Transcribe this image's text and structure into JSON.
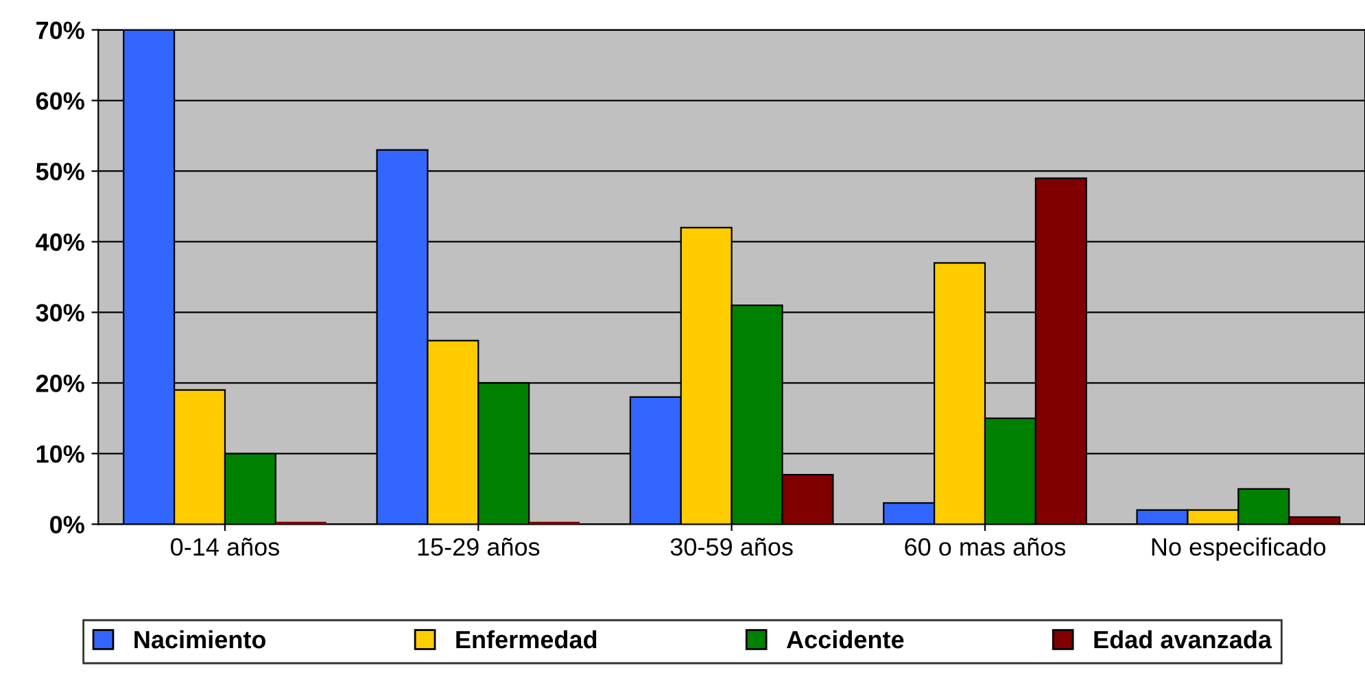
{
  "chart_data": {
    "type": "bar",
    "categories": [
      "0-14 años",
      "15-29 años",
      "30-59 años",
      "60 o mas años",
      "No especificado"
    ],
    "series": [
      {
        "name": "Nacimiento",
        "color": "#3366ff",
        "values": [
          70,
          53,
          18,
          3,
          2
        ]
      },
      {
        "name": "Enfermedad",
        "color": "#ffcc00",
        "values": [
          19,
          26,
          42,
          37,
          2
        ]
      },
      {
        "name": "Accidente",
        "color": "#008000",
        "values": [
          10,
          20,
          31,
          15,
          5
        ]
      },
      {
        "name": "Edad avanzada",
        "color": "#800000",
        "values": [
          0,
          0,
          7,
          49,
          1
        ]
      }
    ],
    "ylim": [
      0,
      70
    ],
    "yticks": [
      {
        "value": 0,
        "label": "0%"
      },
      {
        "value": 10,
        "label": "10%"
      },
      {
        "value": 20,
        "label": "20%"
      },
      {
        "value": 30,
        "label": "30%"
      },
      {
        "value": 40,
        "label": "40%"
      },
      {
        "value": 50,
        "label": "50%"
      },
      {
        "value": 60,
        "label": "60%"
      },
      {
        "value": 70,
        "label": "70%"
      }
    ],
    "grid": "y",
    "legend": "bottom"
  }
}
